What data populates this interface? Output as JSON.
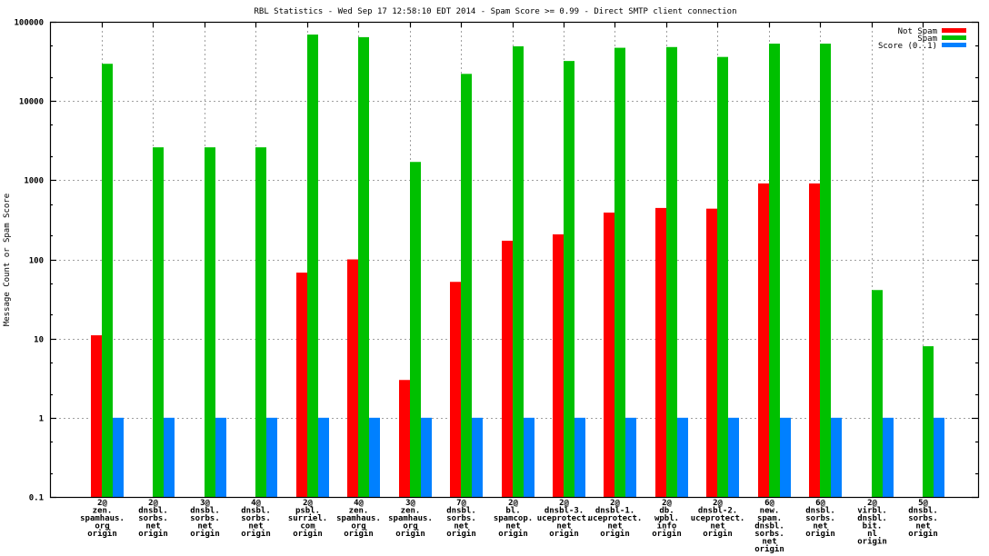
{
  "chart_data": {
    "type": "bar",
    "title": "RBL Statistics - Wed Sep 17 12:58:10 EDT 2014 - Spam Score >= 0.99 - Direct SMTP client connection",
    "xlabel": "",
    "ylabel": "Message Count or Spam Score",
    "yscale": "log",
    "ylim": [
      0.1,
      100000
    ],
    "yticks": [
      "0.1",
      "1",
      "10",
      "100",
      "1000",
      "10000",
      "100000"
    ],
    "grid": true,
    "legend_position": "top-right",
    "categories": [
      [
        "2@",
        "zen.",
        "spamhaus.",
        "org",
        "origin"
      ],
      [
        "2@",
        "dnsbl.",
        "sorbs.",
        "net",
        "origin"
      ],
      [
        "3@",
        "dnsbl.",
        "sorbs.",
        "net",
        "origin"
      ],
      [
        "4@",
        "dnsbl.",
        "sorbs.",
        "net",
        "origin"
      ],
      [
        "2@",
        "psbl.",
        "surriel.",
        "com",
        "origin"
      ],
      [
        "4@",
        "zen.",
        "spamhaus.",
        "org",
        "origin"
      ],
      [
        "3@",
        "zen.",
        "spamhaus.",
        "org",
        "origin"
      ],
      [
        "7@",
        "dnsbl.",
        "sorbs.",
        "net",
        "origin"
      ],
      [
        "2@",
        "bl.",
        "spamcop.",
        "net",
        "origin"
      ],
      [
        "2@",
        "dnsbl-3.",
        "uceprotect.",
        "net",
        "origin"
      ],
      [
        "2@",
        "dnsbl-1.",
        "uceprotect.",
        "net",
        "origin"
      ],
      [
        "2@",
        "db.",
        "wpbl.",
        "info",
        "origin"
      ],
      [
        "2@",
        "dnsbl-2.",
        "uceprotect.",
        "net",
        "origin"
      ],
      [
        "6@",
        "new.",
        "spam.",
        "dnsbl.",
        "sorbs.",
        "net",
        "origin"
      ],
      [
        "6@",
        "dnsbl.",
        "sorbs.",
        "net",
        "origin"
      ],
      [
        "2@",
        "virbl.",
        "dnsbl.",
        "bit.",
        "nl",
        "origin"
      ],
      [
        "5@",
        "dnsbl.",
        "sorbs.",
        "net",
        "origin"
      ]
    ],
    "series": [
      {
        "name": "Not Spam",
        "color": "#ff0000",
        "values": [
          11,
          null,
          null,
          null,
          68,
          100,
          3,
          52,
          172,
          207,
          390,
          446,
          437,
          910,
          910,
          null,
          null
        ]
      },
      {
        "name": "Spam",
        "color": "#00c000",
        "values": [
          29500,
          2600,
          2600,
          2600,
          69000,
          64000,
          1700,
          22000,
          49000,
          32000,
          47000,
          48000,
          36000,
          53000,
          53000,
          41,
          8
        ]
      },
      {
        "name": "Score (0..1)",
        "color": "#0080ff",
        "values": [
          1,
          1,
          1,
          1,
          1,
          1,
          1,
          1,
          1,
          1,
          1,
          1,
          1,
          1,
          1,
          1,
          1
        ]
      }
    ]
  }
}
